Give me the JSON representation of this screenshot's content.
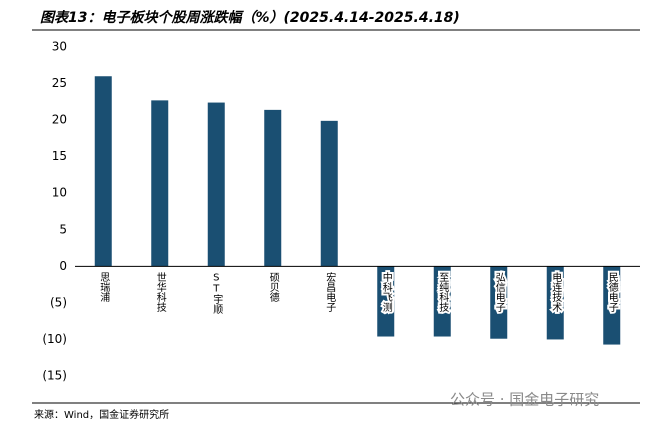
{
  "chart_data": {
    "type": "bar",
    "title": "图表13：电子板块个股周涨跌幅（%）(2025.4.14-2025.4.18)",
    "categories": [
      "思瑞浦",
      "世华科技",
      "ST宇顺",
      "硕贝德",
      "宏昌电子",
      "中科飞测",
      "至纯科技",
      "弘信电子",
      "电连技术",
      "民德电子"
    ],
    "values": [
      26.0,
      22.7,
      22.4,
      21.4,
      19.9,
      -9.6,
      -9.6,
      -9.9,
      -10.0,
      -10.7
    ],
    "color": "#1a4f72",
    "ylim": [
      -15,
      30
    ],
    "yticks": [
      30,
      25,
      20,
      15,
      10,
      5,
      0,
      {
        "value": -5,
        "label": "(5)"
      },
      {
        "value": -10,
        "label": "(10)"
      },
      {
        "value": -15,
        "label": "(15)"
      }
    ],
    "negative_tick_color": "#e00000",
    "grid": false,
    "source": "来源：Wind，国金证券研究所",
    "watermark": "公众号 · 国金电子研究"
  }
}
